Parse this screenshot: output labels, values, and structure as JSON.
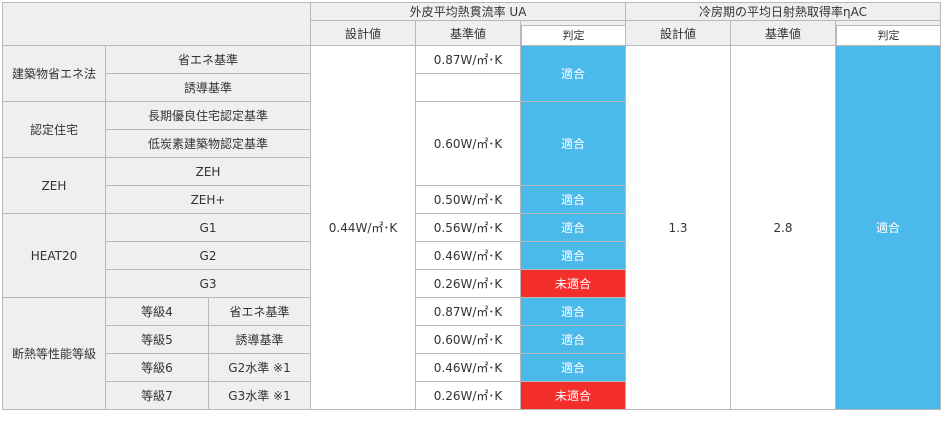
{
  "header": {
    "ua_group": "外皮平均熱貫流率 UA",
    "eta_group": "冷房期の平均日射熱取得率ηAC",
    "design_value": "設計値",
    "standard_value": "基準値",
    "judgement": "判定"
  },
  "design": {
    "ua": "0.44W/㎡･K",
    "eta": "1.3",
    "eta_standard": "2.8",
    "eta_result": "適合"
  },
  "groups": {
    "energy_law": "建築物省エネ法",
    "certified_house": "認定住宅",
    "zeh": "ZEH",
    "heat20": "HEAT20",
    "insulation_grade": "断熱等性能等級"
  },
  "rows": [
    {
      "label": "省エネ基準",
      "standard": "0.87W/㎡･K",
      "result": "適合"
    },
    {
      "label": "誘導基準"
    },
    {
      "label": "長期優良住宅認定基準",
      "standard": "0.60W/㎡･K",
      "result": "適合"
    },
    {
      "label": "低炭素建築物認定基準"
    },
    {
      "label": "ZEH"
    },
    {
      "label": "ZEH+",
      "standard": "0.50W/㎡･K",
      "result": "適合"
    },
    {
      "label": "G1",
      "standard": "0.56W/㎡･K",
      "result": "適合"
    },
    {
      "label": "G2",
      "standard": "0.46W/㎡･K",
      "result": "適合"
    },
    {
      "label": "G3",
      "standard": "0.26W/㎡･K",
      "result": "未適合"
    },
    {
      "grade": "等級4",
      "label": "省エネ基準",
      "standard": "0.87W/㎡･K",
      "result": "適合"
    },
    {
      "grade": "等級5",
      "label": "誘導基準",
      "standard": "0.60W/㎡･K",
      "result": "適合"
    },
    {
      "grade": "等級6",
      "label": "G2水準 ※1",
      "standard": "0.46W/㎡･K",
      "result": "適合"
    },
    {
      "grade": "等級7",
      "label": "G3水準 ※1",
      "standard": "0.26W/㎡･K",
      "result": "未適合"
    }
  ],
  "colors": {
    "pass": "#4bb9e9",
    "fail": "#f42e2b",
    "header_bg": "#efefef",
    "border": "#b8b8b8"
  }
}
